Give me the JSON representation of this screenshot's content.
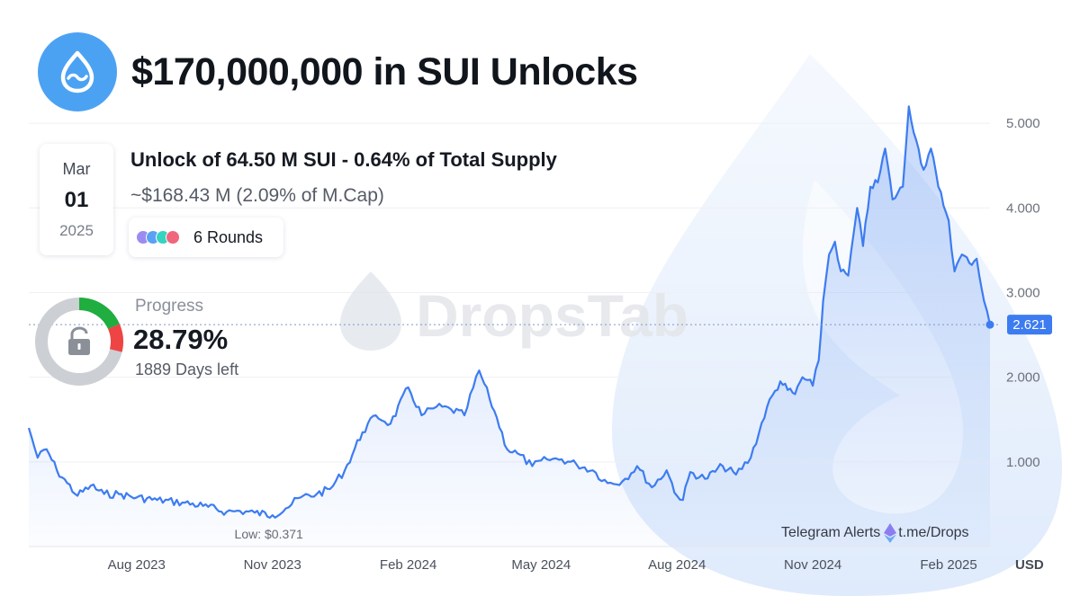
{
  "header": {
    "title": "$170,000,000 in SUI Unlocks"
  },
  "unlock": {
    "month": "Mar",
    "day": "01",
    "year": "2025",
    "title": "Unlock of 64.50 M SUI - 0.64% of Total Supply",
    "subtitle": "~$168.43 M (2.09% of M.Cap)",
    "rounds_label": "6 Rounds",
    "round_colors": [
      "#9b8cf2",
      "#5aa0f5",
      "#35d3c0",
      "#f0667c"
    ]
  },
  "progress": {
    "label": "Progress",
    "value": "28.79%",
    "fraction": 0.2879,
    "days_left": "1889 Days left",
    "colors": {
      "done_green": "#1fae3f",
      "done_red": "#ef4444",
      "remaining": "#cccfd4"
    }
  },
  "watermark": {
    "text": "DropsTab"
  },
  "footer": {
    "telegram_label": "Telegram Alerts",
    "telegram_link": "t.me/Drops",
    "currency": "USD"
  },
  "chart_data": {
    "type": "line",
    "x_ticks": [
      "Aug 2023",
      "Nov 2023",
      "Feb 2024",
      "May 2024",
      "Aug 2024",
      "Nov 2024",
      "Feb 2025"
    ],
    "y_ticks": [
      "1.000",
      "2.000",
      "3.000",
      "4.000",
      "5.000"
    ],
    "y_tick_values": [
      1,
      2,
      3,
      4,
      5
    ],
    "ylim": [
      0,
      5.5
    ],
    "current_price_label": "2.621",
    "current_price": 2.621,
    "low_label": "Low: $0.371",
    "low_value": 0.371,
    "line_color": "#3d7cf0",
    "series": [
      {
        "x": [
          "2023-05-20",
          "2023-05-26",
          "2023-06-01",
          "2023-06-08",
          "2023-06-15",
          "2023-06-22",
          "2023-07-01",
          "2023-07-10",
          "2023-07-20",
          "2023-08-01",
          "2023-08-15",
          "2023-09-01",
          "2023-09-15",
          "2023-10-01",
          "2023-10-10",
          "2023-10-20",
          "2023-11-01",
          "2023-11-10",
          "2023-11-20",
          "2023-12-01",
          "2023-12-10",
          "2023-12-20",
          "2024-01-01",
          "2024-01-10",
          "2024-01-20",
          "2024-02-01",
          "2024-02-10",
          "2024-02-20",
          "2024-03-01",
          "2024-03-10",
          "2024-03-20",
          "2024-03-27",
          "2024-04-01",
          "2024-04-08",
          "2024-04-15",
          "2024-04-25",
          "2024-05-05",
          "2024-05-15",
          "2024-05-25",
          "2024-06-05",
          "2024-06-15",
          "2024-06-25",
          "2024-07-05",
          "2024-07-15",
          "2024-07-25",
          "2024-08-01",
          "2024-08-05",
          "2024-08-10",
          "2024-08-20",
          "2024-09-01",
          "2024-09-10",
          "2024-09-20",
          "2024-10-01",
          "2024-10-10",
          "2024-10-15",
          "2024-10-20",
          "2024-10-25",
          "2024-11-01",
          "2024-11-05",
          "2024-11-08",
          "2024-11-12",
          "2024-11-16",
          "2024-11-20",
          "2024-11-25",
          "2024-12-01",
          "2024-12-05",
          "2024-12-10",
          "2024-12-15",
          "2024-12-20",
          "2024-12-25",
          "2025-01-01",
          "2025-01-05",
          "2025-01-10",
          "2025-01-15",
          "2025-01-20",
          "2025-01-25",
          "2025-02-01",
          "2025-02-05",
          "2025-02-10",
          "2025-02-15",
          "2025-02-20",
          "2025-02-25",
          "2025-03-01"
        ],
        "values": [
          1.4,
          1.05,
          1.15,
          0.9,
          0.75,
          0.6,
          0.72,
          0.62,
          0.62,
          0.58,
          0.55,
          0.52,
          0.48,
          0.41,
          0.42,
          0.4,
          0.371,
          0.45,
          0.58,
          0.62,
          0.68,
          0.9,
          1.35,
          1.55,
          1.45,
          1.88,
          1.55,
          1.65,
          1.62,
          1.55,
          2.08,
          1.75,
          1.52,
          1.15,
          1.1,
          0.95,
          1.03,
          1.03,
          0.97,
          0.9,
          0.75,
          0.77,
          0.95,
          0.7,
          0.9,
          0.6,
          0.55,
          0.88,
          0.8,
          0.95,
          0.85,
          1.05,
          1.65,
          1.95,
          1.85,
          1.8,
          2.0,
          1.9,
          2.2,
          2.9,
          3.45,
          3.6,
          3.25,
          3.2,
          4.0,
          3.55,
          4.25,
          4.3,
          4.7,
          4.1,
          4.25,
          5.2,
          4.8,
          4.45,
          4.7,
          4.25,
          3.85,
          3.25,
          3.45,
          3.35,
          3.4,
          2.9,
          2.621
        ]
      }
    ]
  }
}
